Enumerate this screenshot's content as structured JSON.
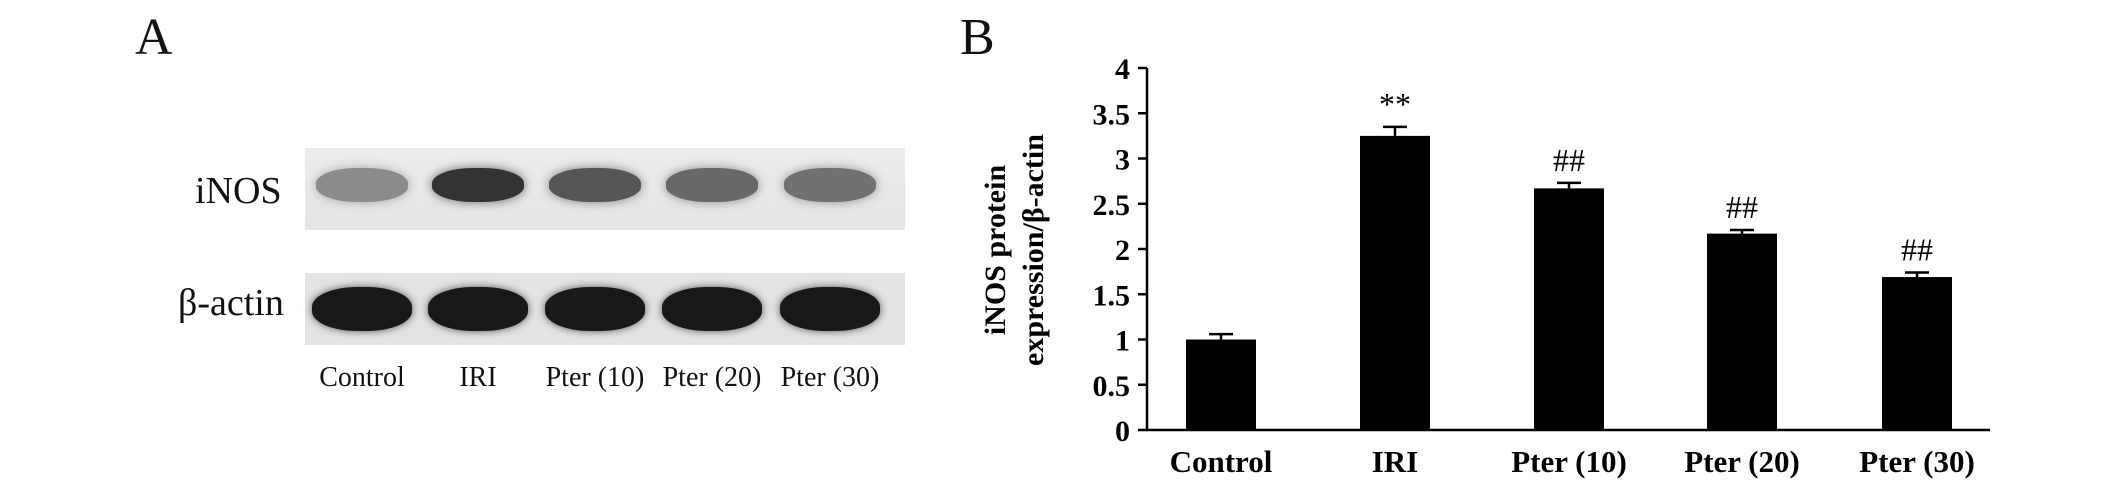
{
  "panel_a": {
    "letter": "A",
    "rows": [
      {
        "label": "iNOS",
        "intensities": [
          0.35,
          0.85,
          0.65,
          0.55,
          0.5
        ]
      },
      {
        "label": "β-actin",
        "intensities": [
          1.0,
          1.0,
          1.0,
          1.0,
          1.0
        ]
      }
    ],
    "lanes": [
      "Control",
      "IRI",
      "Pter (10)",
      "Pter (20)",
      "Pter (30)"
    ]
  },
  "panel_b": {
    "letter": "B"
  },
  "chart_data": {
    "type": "bar",
    "categories": [
      "Control",
      "IRI",
      "Pter (10)",
      "Pter (20)",
      "Pter (30)"
    ],
    "values": [
      1.0,
      3.25,
      2.67,
      2.17,
      1.69
    ],
    "errors": [
      0.06,
      0.1,
      0.06,
      0.04,
      0.05
    ],
    "annotations": [
      "",
      "**",
      "##",
      "##",
      "##"
    ],
    "ylabel_lines": [
      "iNOS protein",
      "expression/β-actin"
    ],
    "xlabel": "",
    "ylim": [
      0,
      4
    ],
    "yticks": [
      0,
      0.5,
      1,
      1.5,
      2,
      2.5,
      3,
      3.5,
      4
    ],
    "ytick_labels": [
      "0",
      "0.5",
      "1",
      "1.5",
      "2",
      "2.5",
      "3",
      "3.5",
      "4"
    ],
    "bar_color": "#000000",
    "grid": false
  }
}
